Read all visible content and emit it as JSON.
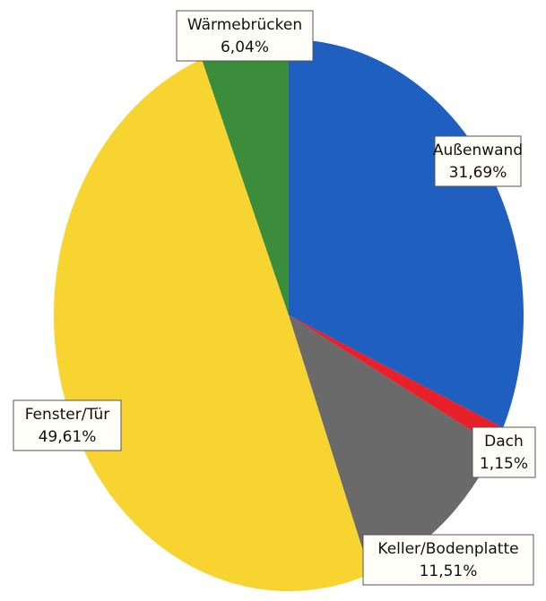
{
  "chart_data": {
    "type": "pie",
    "categories": [
      "Außenwand",
      "Dach",
      "Keller/Bodenplatte",
      "Fenster/Tür",
      "Wärmebrücken"
    ],
    "values": [
      31.69,
      1.15,
      11.51,
      49.61,
      6.04
    ],
    "value_labels": [
      "31,69%",
      "1,15%",
      "11,51%",
      "49,61%",
      "6,04%"
    ],
    "colors": [
      "#1f5fc0",
      "#e8202a",
      "#6a6a6a",
      "#f8d430",
      "#3b8c3b"
    ]
  }
}
